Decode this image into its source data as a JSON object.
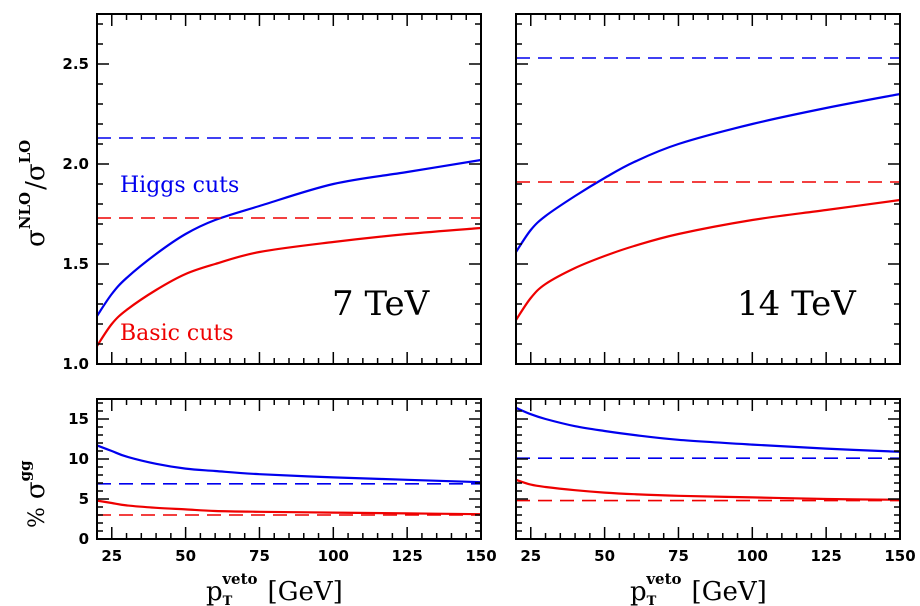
{
  "colors": {
    "blue": "#0000ee",
    "red": "#ee0000",
    "axis": "#000000"
  },
  "ylabel_top": {
    "base": "σ",
    "sup1": "NLO",
    "slash": "/",
    "base2": "σ",
    "sup2": "LO"
  },
  "ylabel_bottom": {
    "prefix": "%",
    "base": "σ",
    "sup": "gg"
  },
  "xlabel": {
    "base": "p",
    "sub": "T",
    "sup": "veto",
    "unit": "[GeV]"
  },
  "chart_data": [
    {
      "type": "line",
      "panel": "top-left",
      "annotation": "7 TeV",
      "xlim": [
        20,
        150
      ],
      "ylim": [
        1.0,
        2.75
      ],
      "xticks": [
        25,
        50,
        75,
        100,
        125,
        150
      ],
      "yticks": [
        1.0,
        1.5,
        2.0,
        2.5
      ],
      "ytick_labels": [
        "1.0",
        "1.5",
        "2.0",
        "2.5"
      ],
      "xtick_labels": [],
      "series": [
        {
          "name": "Higgs cuts",
          "color": "blue",
          "style": "solid",
          "x": [
            20,
            25,
            30,
            40,
            50,
            60,
            75,
            100,
            125,
            150
          ],
          "y": [
            1.24,
            1.35,
            1.43,
            1.55,
            1.65,
            1.72,
            1.79,
            1.9,
            1.96,
            2.02
          ]
        },
        {
          "name": "",
          "color": "blue",
          "style": "dashed",
          "x": [
            20,
            150
          ],
          "y": [
            2.13,
            2.13
          ]
        },
        {
          "name": "Basic cuts",
          "color": "red",
          "style": "solid",
          "x": [
            20,
            25,
            30,
            40,
            50,
            60,
            75,
            100,
            125,
            150
          ],
          "y": [
            1.09,
            1.2,
            1.27,
            1.37,
            1.45,
            1.5,
            1.56,
            1.61,
            1.65,
            1.68
          ]
        },
        {
          "name": "",
          "color": "red",
          "style": "dashed",
          "x": [
            20,
            150
          ],
          "y": [
            1.73,
            1.73
          ]
        }
      ]
    },
    {
      "type": "line",
      "panel": "top-right",
      "annotation": "14 TeV",
      "xlim": [
        20,
        150
      ],
      "ylim": [
        1.0,
        2.75
      ],
      "xticks": [
        25,
        50,
        75,
        100,
        125,
        150
      ],
      "yticks": [
        1.0,
        1.5,
        2.0,
        2.5
      ],
      "ytick_labels": [],
      "xtick_labels": [],
      "series": [
        {
          "name": "",
          "color": "blue",
          "style": "solid",
          "x": [
            20,
            25,
            30,
            40,
            50,
            60,
            75,
            100,
            125,
            150
          ],
          "y": [
            1.56,
            1.67,
            1.74,
            1.84,
            1.93,
            2.01,
            2.1,
            2.2,
            2.28,
            2.35
          ]
        },
        {
          "name": "",
          "color": "blue",
          "style": "dashed",
          "x": [
            20,
            150
          ],
          "y": [
            2.53,
            2.53
          ]
        },
        {
          "name": "",
          "color": "red",
          "style": "solid",
          "x": [
            20,
            25,
            30,
            40,
            50,
            60,
            75,
            100,
            125,
            150
          ],
          "y": [
            1.22,
            1.33,
            1.4,
            1.48,
            1.54,
            1.59,
            1.65,
            1.72,
            1.77,
            1.82
          ]
        },
        {
          "name": "",
          "color": "red",
          "style": "dashed",
          "x": [
            20,
            150
          ],
          "y": [
            1.91,
            1.91
          ]
        }
      ]
    },
    {
      "type": "line",
      "panel": "bottom-left",
      "xlim": [
        20,
        150
      ],
      "ylim": [
        0,
        17.5
      ],
      "xticks": [
        25,
        50,
        75,
        100,
        125,
        150
      ],
      "yticks": [
        0,
        5,
        10,
        15
      ],
      "ytick_labels": [
        "0",
        "5",
        "10",
        "15"
      ],
      "xtick_labels": [
        "25",
        "50",
        "75",
        "100",
        "125",
        "150"
      ],
      "series": [
        {
          "name": "",
          "color": "blue",
          "style": "solid",
          "x": [
            20,
            25,
            30,
            40,
            50,
            60,
            75,
            100,
            125,
            150
          ],
          "y": [
            11.7,
            11.0,
            10.3,
            9.4,
            8.8,
            8.5,
            8.1,
            7.7,
            7.4,
            7.1
          ]
        },
        {
          "name": "",
          "color": "blue",
          "style": "dashed",
          "x": [
            20,
            150
          ],
          "y": [
            6.9,
            6.9
          ]
        },
        {
          "name": "",
          "color": "red",
          "style": "solid",
          "x": [
            20,
            25,
            30,
            40,
            50,
            60,
            75,
            100,
            125,
            150
          ],
          "y": [
            4.8,
            4.5,
            4.2,
            3.9,
            3.7,
            3.5,
            3.4,
            3.3,
            3.2,
            3.1
          ]
        },
        {
          "name": "",
          "color": "red",
          "style": "dashed",
          "x": [
            20,
            150
          ],
          "y": [
            3.0,
            3.0
          ]
        }
      ]
    },
    {
      "type": "line",
      "panel": "bottom-right",
      "xlim": [
        20,
        150
      ],
      "ylim": [
        0,
        17.5
      ],
      "xticks": [
        25,
        50,
        75,
        100,
        125,
        150
      ],
      "yticks": [
        0,
        5,
        10,
        15
      ],
      "ytick_labels": [],
      "xtick_labels": [
        "25",
        "50",
        "75",
        "100",
        "125",
        "150"
      ],
      "series": [
        {
          "name": "",
          "color": "blue",
          "style": "solid",
          "x": [
            20,
            25,
            30,
            40,
            50,
            60,
            75,
            100,
            125,
            150
          ],
          "y": [
            16.4,
            15.6,
            15.0,
            14.1,
            13.5,
            13.0,
            12.4,
            11.8,
            11.3,
            10.9
          ]
        },
        {
          "name": "",
          "color": "blue",
          "style": "dashed",
          "x": [
            20,
            150
          ],
          "y": [
            10.1,
            10.1
          ]
        },
        {
          "name": "",
          "color": "red",
          "style": "solid",
          "x": [
            20,
            25,
            30,
            40,
            50,
            60,
            75,
            100,
            125,
            150
          ],
          "y": [
            7.4,
            6.8,
            6.5,
            6.1,
            5.8,
            5.6,
            5.4,
            5.2,
            5.0,
            4.9
          ]
        },
        {
          "name": "",
          "color": "red",
          "style": "dashed",
          "x": [
            20,
            150
          ],
          "y": [
            4.8,
            4.8
          ]
        }
      ]
    }
  ]
}
